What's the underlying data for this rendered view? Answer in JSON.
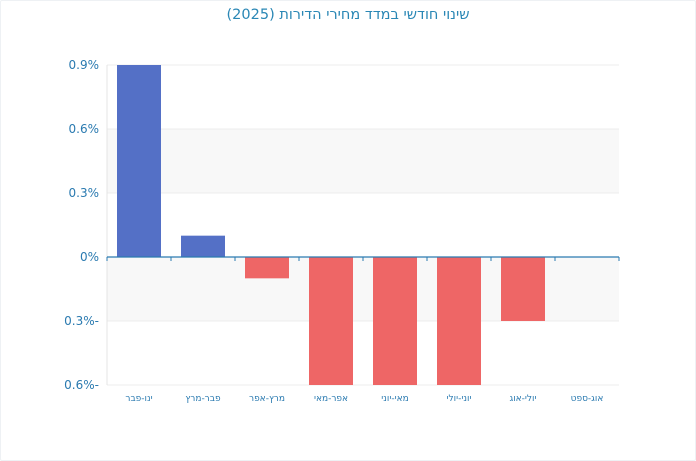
{
  "chart_data": {
    "type": "bar",
    "title": "שינוי חודשי במדד מחירי הדירות (2025)",
    "categories": [
      "ינו-פבר",
      "פבר-מרץ",
      "מרץ-אפר",
      "אפר-מאי",
      "מאי-יוני",
      "יוני-יולי",
      "יולי-אוג",
      "אוג-ספט"
    ],
    "values": [
      0.9,
      0.1,
      -0.1,
      -0.6,
      -0.6,
      -0.6,
      -0.3,
      0.0
    ],
    "ylim": [
      -0.6,
      0.9
    ],
    "yticks": [
      0.9,
      0.6,
      0.3,
      0,
      -0.3,
      -0.6
    ],
    "ytick_labels": [
      "0.9%",
      "0.6%",
      "0.3%",
      "0%",
      "0.3%-",
      "0.6%-"
    ],
    "xlabel": "",
    "ylabel": "",
    "grid": true,
    "colors": {
      "positive": "#5470c6",
      "negative": "#ee6666",
      "axis": "#2a7ab0",
      "band": "#f8f8f8"
    }
  }
}
